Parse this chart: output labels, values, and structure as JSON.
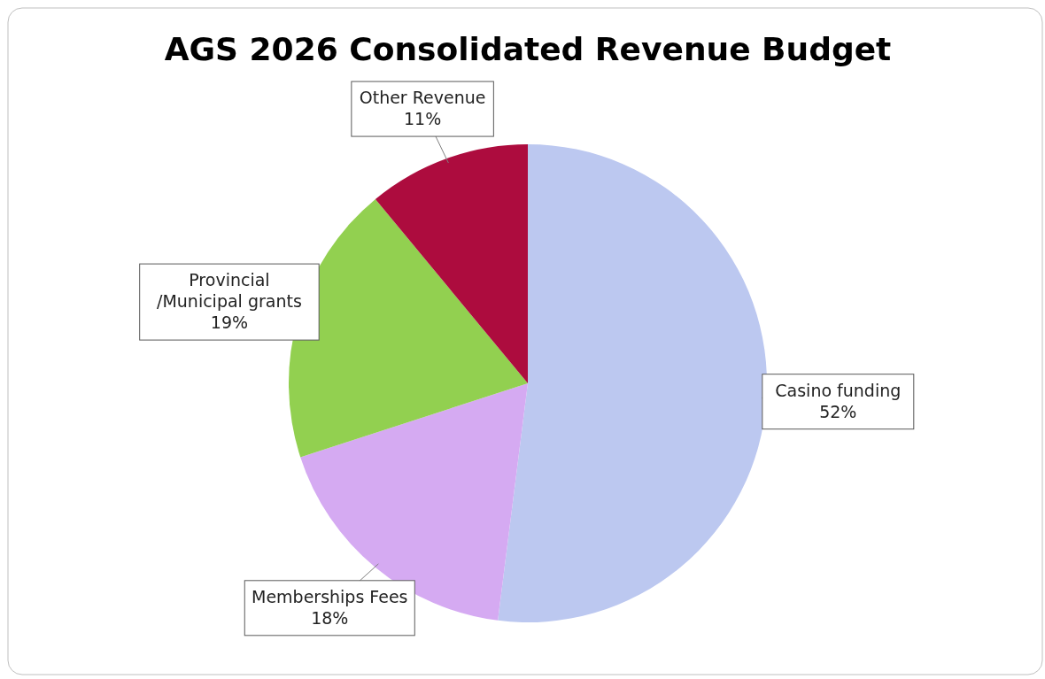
{
  "chart_data": {
    "type": "pie",
    "title": "AGS 2026 Consolidated Revenue Budget",
    "categories": [
      "Casino funding",
      "Memberships Fees",
      "Provincial /Municipal grants",
      "Other Revenue"
    ],
    "values": [
      52,
      18,
      19,
      11
    ],
    "colors": [
      "#bcc8f0",
      "#d5aaf2",
      "#92d050",
      "#ad0c3e"
    ],
    "value_labels": [
      "52%",
      "18%",
      "19%",
      "11%"
    ]
  }
}
